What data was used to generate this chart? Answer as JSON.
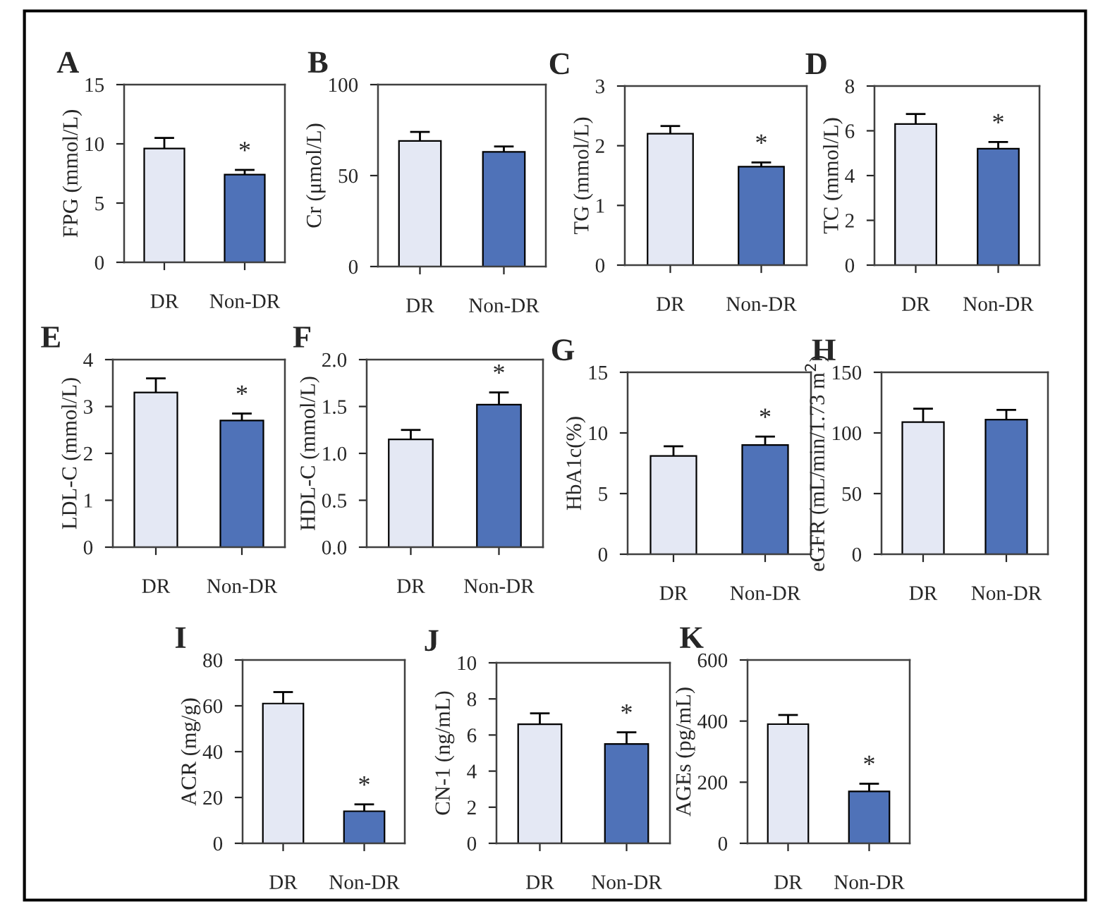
{
  "chart_data": [
    {
      "type": "bar",
      "title": "A",
      "ylabel": "FPG (mmol/L)",
      "categories": [
        "DR",
        "Non-DR"
      ],
      "values": [
        9.6,
        7.4
      ],
      "errors": [
        0.9,
        0.4
      ],
      "colors": [
        "#e4e8f4",
        "#4f72b8"
      ],
      "ylim": [
        0,
        15
      ],
      "yticks": [
        0,
        5,
        10,
        15
      ],
      "annotations": [
        {
          "text": "*",
          "x": "Non-DR",
          "y": 7.4
        }
      ]
    },
    {
      "type": "bar",
      "title": "B",
      "ylabel": "Cr (μmol/L)",
      "categories": [
        "DR",
        "Non-DR"
      ],
      "values": [
        69,
        63
      ],
      "errors": [
        5,
        3
      ],
      "colors": [
        "#e4e8f4",
        "#4f72b8"
      ],
      "ylim": [
        0,
        100
      ],
      "yticks": [
        0,
        50,
        100
      ]
    },
    {
      "type": "bar",
      "title": "C",
      "ylabel": "TG (mmol/L)",
      "categories": [
        "DR",
        "Non-DR"
      ],
      "values": [
        2.2,
        1.65
      ],
      "errors": [
        0.13,
        0.07
      ],
      "colors": [
        "#e4e8f4",
        "#4f72b8"
      ],
      "ylim": [
        0,
        3
      ],
      "yticks": [
        0,
        1,
        2,
        3
      ],
      "annotations": [
        {
          "text": "*",
          "x": "Non-DR",
          "y": 1.65
        }
      ]
    },
    {
      "type": "bar",
      "title": "D",
      "ylabel": "TC (mmol/L)",
      "categories": [
        "DR",
        "Non-DR"
      ],
      "values": [
        6.3,
        5.2
      ],
      "errors": [
        0.45,
        0.3
      ],
      "colors": [
        "#e4e8f4",
        "#4f72b8"
      ],
      "ylim": [
        0,
        8
      ],
      "yticks": [
        0,
        2,
        4,
        6,
        8
      ],
      "annotations": [
        {
          "text": "*",
          "x": "Non-DR",
          "y": 5.2
        }
      ]
    },
    {
      "type": "bar",
      "title": "E",
      "ylabel": "LDL-C (mmol/L)",
      "categories": [
        "DR",
        "Non-DR"
      ],
      "values": [
        3.3,
        2.7
      ],
      "errors": [
        0.3,
        0.15
      ],
      "colors": [
        "#e4e8f4",
        "#4f72b8"
      ],
      "ylim": [
        0,
        4
      ],
      "yticks": [
        0,
        1,
        2,
        3,
        4
      ],
      "annotations": [
        {
          "text": "*",
          "x": "Non-DR",
          "y": 2.7
        }
      ]
    },
    {
      "type": "bar",
      "title": "F",
      "ylabel": "HDL-C (mmol/L)",
      "categories": [
        "DR",
        "Non-DR"
      ],
      "values": [
        1.15,
        1.52
      ],
      "errors": [
        0.1,
        0.13
      ],
      "colors": [
        "#e4e8f4",
        "#4f72b8"
      ],
      "ylim": [
        0,
        2
      ],
      "yticks": [
        {
          "value": 0,
          "label": "0.0"
        },
        {
          "value": 0.5,
          "label": "0.5"
        },
        {
          "value": 1,
          "label": "1.0"
        },
        {
          "value": 1.5,
          "label": "1.5"
        },
        {
          "value": 2,
          "label": "2.0"
        }
      ],
      "annotations": [
        {
          "text": "*",
          "x": "Non-DR",
          "y": 1.52
        }
      ]
    },
    {
      "type": "bar",
      "title": "G",
      "ylabel": "HbA1c(%)",
      "categories": [
        "DR",
        "Non-DR"
      ],
      "values": [
        8.1,
        9.0
      ],
      "errors": [
        0.8,
        0.7
      ],
      "colors": [
        "#e4e8f4",
        "#4f72b8"
      ],
      "ylim": [
        0,
        15
      ],
      "yticks": [
        0,
        5,
        10,
        15
      ],
      "annotations": [
        {
          "text": "*",
          "x": "Non-DR",
          "y": 9.0
        }
      ]
    },
    {
      "type": "bar",
      "title": "H",
      "ylabel": "eGFR (mL/min/1.73 m$^{2}$)",
      "categories": [
        "DR",
        "Non-DR"
      ],
      "values": [
        109,
        111
      ],
      "errors": [
        11,
        8
      ],
      "colors": [
        "#e4e8f4",
        "#4f72b8"
      ],
      "ylim": [
        0,
        150
      ],
      "yticks": [
        0,
        50,
        100,
        150
      ]
    },
    {
      "type": "bar",
      "title": "I",
      "ylabel": "ACR (mg/g)",
      "categories": [
        "DR",
        "Non-DR"
      ],
      "values": [
        61,
        14
      ],
      "errors": [
        5,
        3
      ],
      "colors": [
        "#e4e8f4",
        "#4f72b8"
      ],
      "ylim": [
        0,
        80
      ],
      "yticks": [
        0,
        20,
        40,
        60,
        80
      ],
      "annotations": [
        {
          "text": "*",
          "x": "Non-DR",
          "y": 14
        }
      ]
    },
    {
      "type": "bar",
      "title": "J",
      "ylabel": "CN-1 (ng/mL)",
      "categories": [
        "DR",
        "Non-DR"
      ],
      "values": [
        6.6,
        5.5
      ],
      "errors": [
        0.6,
        0.65
      ],
      "colors": [
        "#e4e8f4",
        "#4f72b8"
      ],
      "ylim": [
        0,
        10
      ],
      "yticks": [
        0,
        2,
        4,
        6,
        8,
        10
      ],
      "annotations": [
        {
          "text": "*",
          "x": "Non-DR",
          "y": 5.5
        }
      ]
    },
    {
      "type": "bar",
      "title": "K",
      "ylabel": "AGEs (pg/mL)",
      "categories": [
        "DR",
        "Non-DR"
      ],
      "values": [
        390,
        170
      ],
      "errors": [
        30,
        25
      ],
      "colors": [
        "#e4e8f4",
        "#4f72b8"
      ],
      "ylim": [
        0,
        600
      ],
      "yticks": [
        0,
        200,
        400,
        600
      ],
      "annotations": [
        {
          "text": "*",
          "x": "Non-DR",
          "y": 170
        }
      ]
    }
  ]
}
